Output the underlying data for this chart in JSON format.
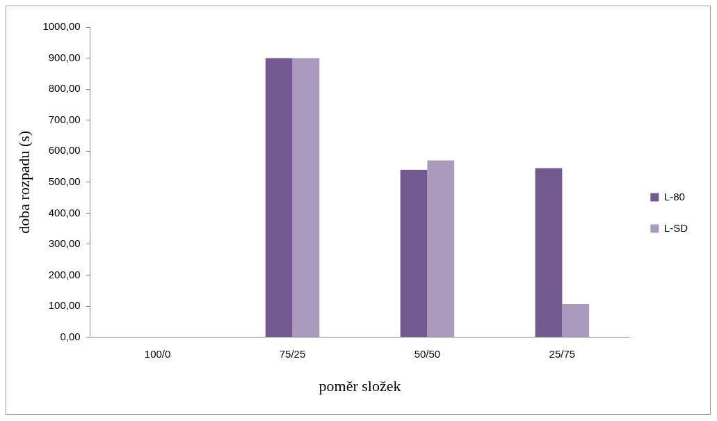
{
  "chart_data": {
    "type": "bar",
    "xlabel": "poměr složek",
    "ylabel": "doba rozpadu (s)",
    "categories": [
      "100/0",
      "75/25",
      "50/50",
      "25/75"
    ],
    "series": [
      {
        "name": "L-80",
        "color": "#725990",
        "values": [
          0,
          900,
          540,
          545
        ]
      },
      {
        "name": "L-SD",
        "color": "#a99abe",
        "values": [
          0,
          900,
          570,
          107
        ]
      }
    ],
    "ylim": [
      0,
      1000
    ],
    "yticks": [
      {
        "value": 0,
        "label": "0,00"
      },
      {
        "value": 100,
        "label": "100,00"
      },
      {
        "value": 200,
        "label": "200,00"
      },
      {
        "value": 300,
        "label": "300,00"
      },
      {
        "value": 400,
        "label": "400,00"
      },
      {
        "value": 500,
        "label": "500,00"
      },
      {
        "value": 600,
        "label": "600,00"
      },
      {
        "value": 700,
        "label": "700,00"
      },
      {
        "value": 800,
        "label": "800,00"
      },
      {
        "value": 900,
        "label": "900,00"
      },
      {
        "value": 1000,
        "label": "1000,00"
      }
    ],
    "grid": false,
    "legend": "right"
  }
}
